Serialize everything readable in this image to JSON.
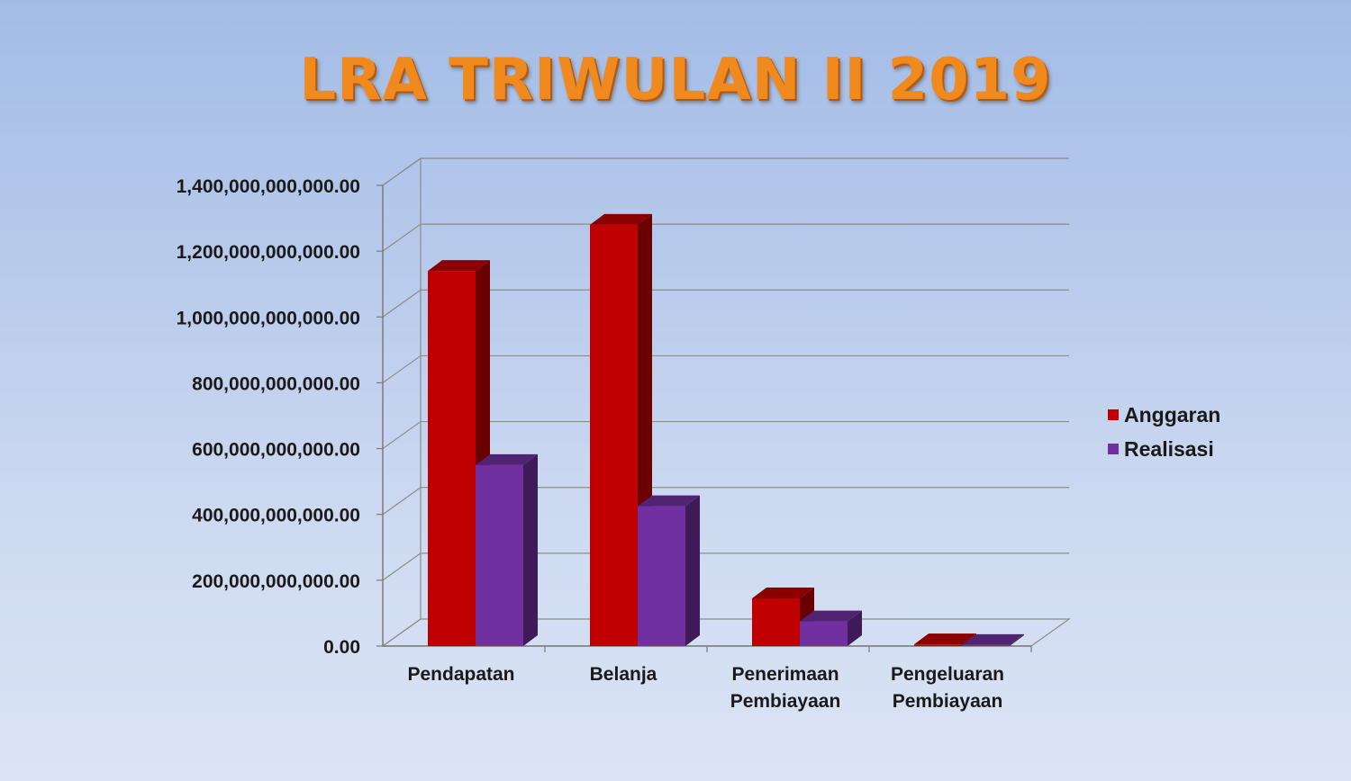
{
  "chart_data": {
    "type": "bar",
    "title": "LRA TRIWULAN II 2019",
    "categories": [
      "Pendapatan",
      "Belanja",
      "Penerimaan Pembiayaan",
      "Pengeluaran Pembiayaan"
    ],
    "series": [
      {
        "name": "Anggaran",
        "values": [
          1140000000000,
          1280000000000,
          145000000000,
          5000000000
        ]
      },
      {
        "name": "Realisasi",
        "values": [
          550000000000,
          425000000000,
          75000000000,
          3000000000
        ]
      }
    ],
    "ylim": [
      0,
      1400000000000
    ],
    "yticks": [
      "0.00",
      "200,000,000,000.00",
      "400,000,000,000.00",
      "600,000,000,000.00",
      "800,000,000,000.00",
      "1,000,000,000,000.00",
      "1,200,000,000,000.00",
      "1,400,000,000,000.00"
    ],
    "grid": true,
    "legend_position": "right",
    "colors": {
      "Anggaran": "#c00000",
      "Realisasi": "#7030a0"
    }
  }
}
